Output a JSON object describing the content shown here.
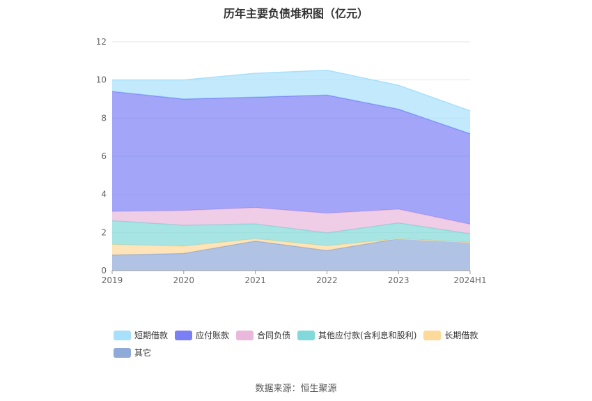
{
  "title": "历年主要负债堆积图（亿元）",
  "source": "数据来源：恒生聚源",
  "chart_data": {
    "type": "area",
    "stacked": true,
    "categories": [
      "2019",
      "2020",
      "2021",
      "2022",
      "2023",
      "2024H1"
    ],
    "ylim": [
      0,
      12
    ],
    "yticks": [
      "0",
      "2",
      "4",
      "6",
      "8",
      "10",
      "12"
    ],
    "grid": true,
    "legend_position": "bottom",
    "series": [
      {
        "name": "其它",
        "color": "#8fa9d9",
        "values": [
          0.82,
          0.9,
          1.55,
          1.05,
          1.68,
          1.48
        ]
      },
      {
        "name": "长期借款",
        "color": "#fdd99a",
        "values": [
          0.55,
          0.38,
          0.12,
          0.25,
          0.0,
          0.0
        ]
      },
      {
        "name": "其他应付款(含利息和股利)",
        "color": "#82d9d9",
        "values": [
          1.25,
          1.1,
          0.78,
          0.68,
          0.82,
          0.45
        ]
      },
      {
        "name": "合同负债",
        "color": "#eab8dc",
        "values": [
          0.48,
          0.77,
          0.85,
          1.03,
          0.72,
          0.5
        ]
      },
      {
        "name": "应付账款",
        "color": "#7b7ff5",
        "values": [
          6.3,
          5.85,
          5.8,
          6.2,
          5.25,
          4.75
        ]
      },
      {
        "name": "短期借款",
        "color": "#a8e0fb",
        "values": [
          0.6,
          1.0,
          1.25,
          1.3,
          1.25,
          1.2
        ]
      }
    ]
  },
  "legend_order": [
    5,
    4,
    3,
    2,
    1,
    0
  ]
}
